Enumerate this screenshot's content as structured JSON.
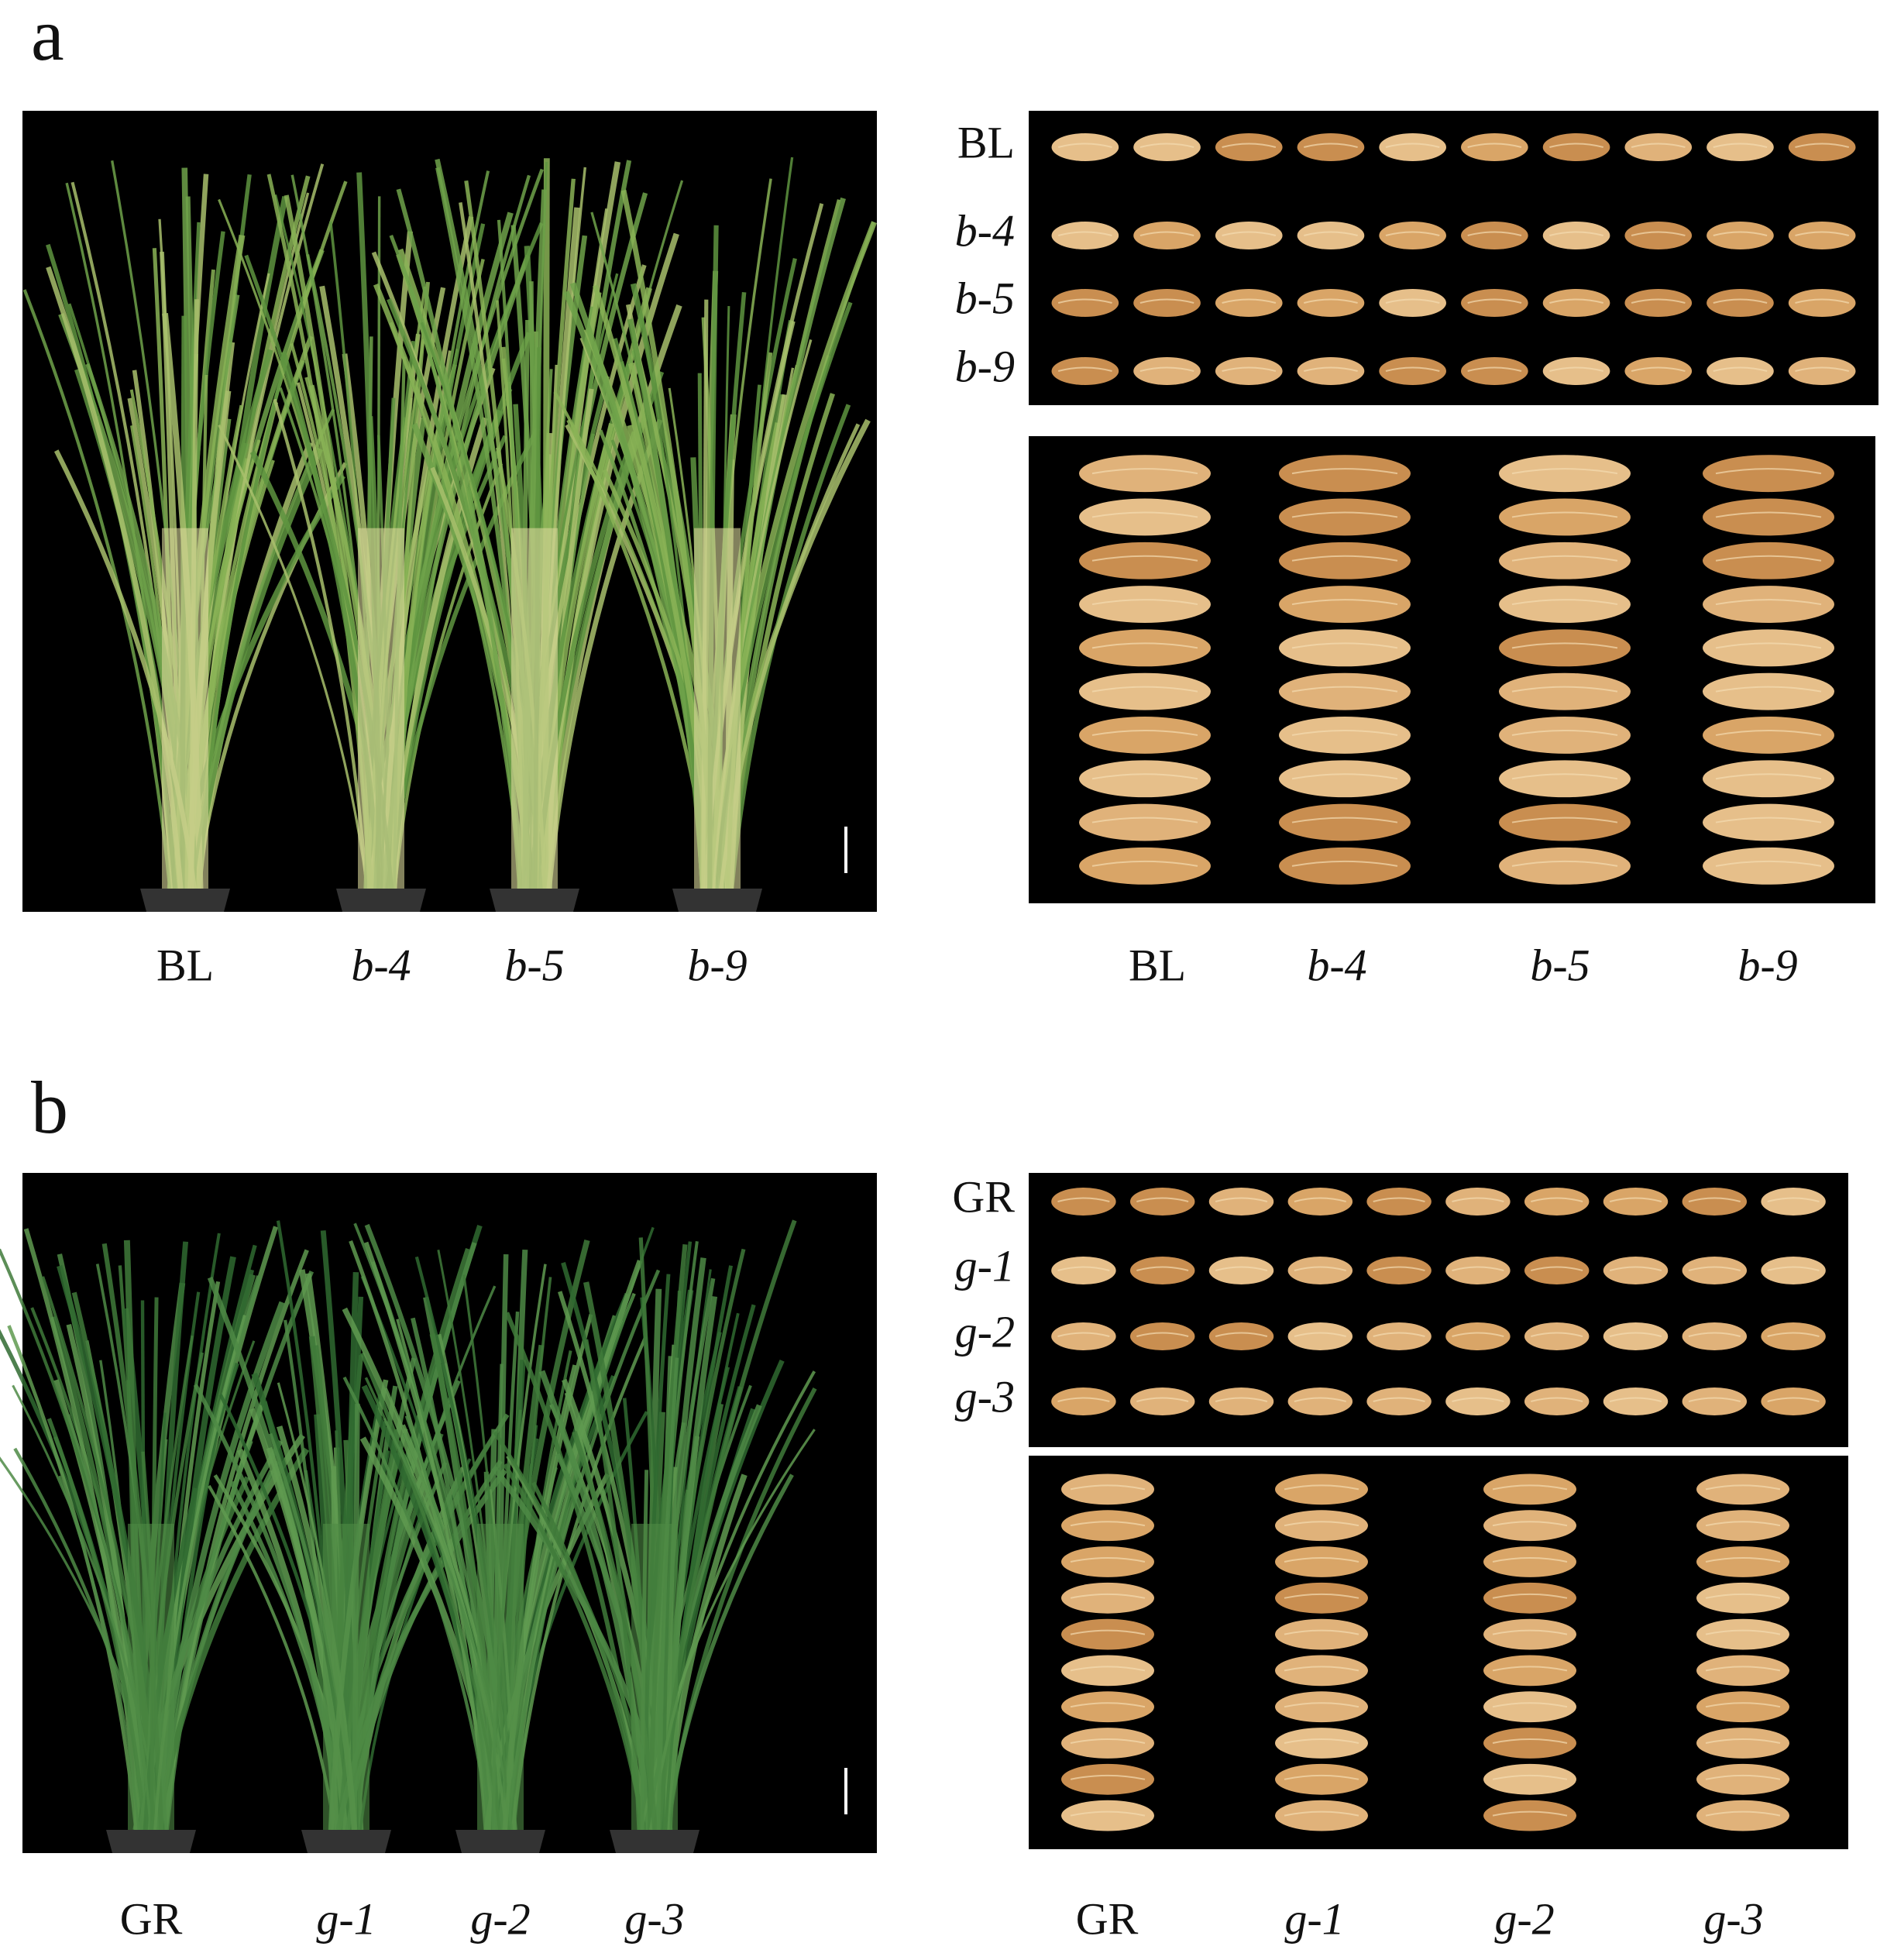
{
  "panels": [
    {
      "letter": "a",
      "plant_labels": [
        "BL",
        "b-4",
        "b-5",
        "b-9"
      ],
      "grain_row_labels": [
        "BL",
        "b-4",
        "b-5",
        "b-9"
      ],
      "grain_column_labels": [
        "BL",
        "b-4",
        "b-5",
        "b-9"
      ]
    },
    {
      "letter": "b",
      "plant_labels": [
        "GR",
        "g-1",
        "g-2",
        "g-3"
      ],
      "grain_row_labels": [
        "GR",
        "g-1",
        "g-2",
        "g-3"
      ],
      "grain_column_labels": [
        "GR",
        "g-1",
        "g-2",
        "g-3"
      ]
    }
  ]
}
